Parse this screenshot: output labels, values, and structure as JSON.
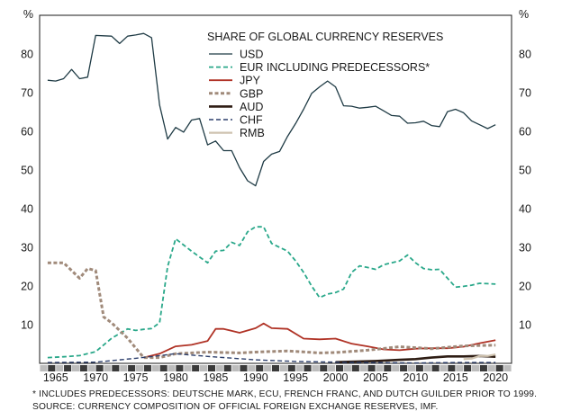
{
  "chart_data": {
    "type": "line",
    "title": "SHARE OF GLOBAL CURRENCY RESERVES",
    "ylabel_left": "%",
    "ylabel_right": "%",
    "xlim": [
      1963,
      2022
    ],
    "ylim": [
      0,
      90
    ],
    "x_ticks": [
      1965,
      1970,
      1975,
      1980,
      1985,
      1990,
      1995,
      2000,
      2005,
      2010,
      2015,
      2020
    ],
    "y_ticks": [
      10,
      20,
      30,
      40,
      50,
      60,
      70,
      80
    ],
    "legend_position": "top-center",
    "series": [
      {
        "name": "USD",
        "color": "#1f3b45",
        "style": "solid",
        "x": [
          1964,
          1965,
          1966,
          1967,
          1968,
          1969,
          1970,
          1971,
          1972,
          1973,
          1974,
          1975,
          1976,
          1977,
          1978,
          1979,
          1980,
          1981,
          1982,
          1983,
          1984,
          1985,
          1986,
          1987,
          1988,
          1989,
          1990,
          1991,
          1992,
          1993,
          1994,
          1995,
          1996,
          1997,
          1998,
          1999,
          2000,
          2001,
          2002,
          2003,
          2004,
          2005,
          2006,
          2007,
          2008,
          2009,
          2010,
          2011,
          2012,
          2013,
          2014,
          2015,
          2016,
          2017,
          2018,
          2019,
          2020
        ],
        "values": [
          73.2,
          73,
          73.6,
          76,
          73.6,
          74,
          84.8,
          84.7,
          84.6,
          82.7,
          84.6,
          84.9,
          85.3,
          84.2,
          66.8,
          58,
          61,
          59.8,
          62.9,
          63.3,
          56.5,
          57.5,
          55,
          55,
          50.6,
          47.2,
          45.9,
          52.2,
          54.1,
          54.8,
          58.7,
          62,
          65.7,
          69.8,
          71.5,
          73,
          71.5,
          66.6,
          66.5,
          66,
          66.2,
          66.5,
          65.3,
          64.1,
          63.9,
          62.1,
          62.2,
          62.6,
          61.5,
          61.2,
          65.1,
          65.7,
          64.8,
          62.7,
          61.7,
          60.7,
          61.7
        ]
      },
      {
        "name": "EUR INCLUDING PREDECESSORS*",
        "color": "#2aa88a",
        "style": "dashed",
        "x": [
          1964,
          1966,
          1968,
          1970,
          1972,
          1974,
          1975,
          1976,
          1977,
          1978,
          1979,
          1980,
          1982,
          1984,
          1985,
          1986,
          1987,
          1988,
          1989,
          1990,
          1991,
          1992,
          1993,
          1994,
          1995,
          1996,
          1997,
          1998,
          1999,
          2000,
          2001,
          2002,
          2003,
          2004,
          2005,
          2006,
          2007,
          2008,
          2009,
          2010,
          2011,
          2012,
          2013,
          2014,
          2015,
          2016,
          2017,
          2018,
          2019,
          2020
        ],
        "values": [
          1.5,
          1.7,
          2,
          3,
          6.5,
          8.9,
          8.5,
          8.8,
          9,
          10.5,
          25,
          32.2,
          29,
          26,
          29,
          29.2,
          31.3,
          30.5,
          34,
          35.3,
          35.3,
          31,
          30,
          29,
          26.5,
          23.5,
          20,
          17,
          17.9,
          18.3,
          19.2,
          23.5,
          25.2,
          24.8,
          24.3,
          25.5,
          26,
          26.5,
          28,
          26,
          24.5,
          24.2,
          24.3,
          22,
          19.7,
          19.9,
          20.2,
          20.7,
          20.6,
          20.5
        ]
      },
      {
        "name": "JPY",
        "color": "#b03326",
        "style": "solid",
        "x": [
          1976,
          1978,
          1980,
          1982,
          1984,
          1985,
          1986,
          1988,
          1990,
          1991,
          1992,
          1994,
          1996,
          1998,
          2000,
          2002,
          2004,
          2006,
          2008,
          2010,
          2012,
          2014,
          2016,
          2018,
          2020
        ],
        "values": [
          1.5,
          2.5,
          4.4,
          4.8,
          5.8,
          8.9,
          8.9,
          7.9,
          9.1,
          10.3,
          9.1,
          8.9,
          6.4,
          6.2,
          6.4,
          5.1,
          4.4,
          3.6,
          3.4,
          3.8,
          3.9,
          3.9,
          4.3,
          5.2,
          6
        ]
      },
      {
        "name": "GBP",
        "color": "#a08a7a",
        "style": "dotted",
        "x": [
          1964,
          1966,
          1968,
          1969,
          1970,
          1971,
          1972,
          1974,
          1976,
          1978,
          1980,
          1984,
          1988,
          1990,
          1994,
          1998,
          2000,
          2004,
          2008,
          2012,
          2016,
          2020
        ],
        "values": [
          26,
          26,
          22,
          24.5,
          24,
          12,
          10.5,
          6.5,
          1.5,
          1.5,
          2.5,
          2.9,
          2.7,
          2.9,
          3.2,
          2.7,
          2.8,
          3.4,
          4.3,
          3.8,
          4.5,
          4.7
        ]
      },
      {
        "name": "AUD",
        "color": "#2e1d14",
        "style": "solid",
        "x": [
          2000,
          2005,
          2008,
          2010,
          2012,
          2014,
          2016,
          2018,
          2020
        ],
        "values": [
          0.3,
          0.6,
          0.9,
          1.1,
          1.5,
          1.8,
          1.8,
          1.9,
          1.7
        ]
      },
      {
        "name": "CHF",
        "color": "#2c3e6b",
        "style": "dashed",
        "x": [
          1964,
          1970,
          1975,
          1978,
          1980,
          1984,
          1990,
          1995,
          2000,
          2005,
          2010,
          2015,
          2020
        ],
        "values": [
          0.2,
          0.3,
          1.3,
          2,
          2.5,
          1.8,
          0.9,
          0.5,
          0.3,
          0.2,
          0.1,
          0.2,
          0.2
        ]
      },
      {
        "name": "RMB",
        "color": "#cfc3b0",
        "style": "solid",
        "x": [
          2016,
          2017,
          2018,
          2019,
          2020
        ],
        "values": [
          1.1,
          1.2,
          1.9,
          1.9,
          2.3
        ]
      }
    ]
  },
  "notes": {
    "footnote": "* INCLUDES PREDECESSORS: DEUTSCHE MARK, ECU, FRENCH FRANC, AND DUTCH GUILDER PRIOR TO 1999.",
    "source": "SOURCE: CURRENCY COMPOSITION OF OFFICIAL FOREIGN EXCHANGE RESERVES, IMF."
  }
}
